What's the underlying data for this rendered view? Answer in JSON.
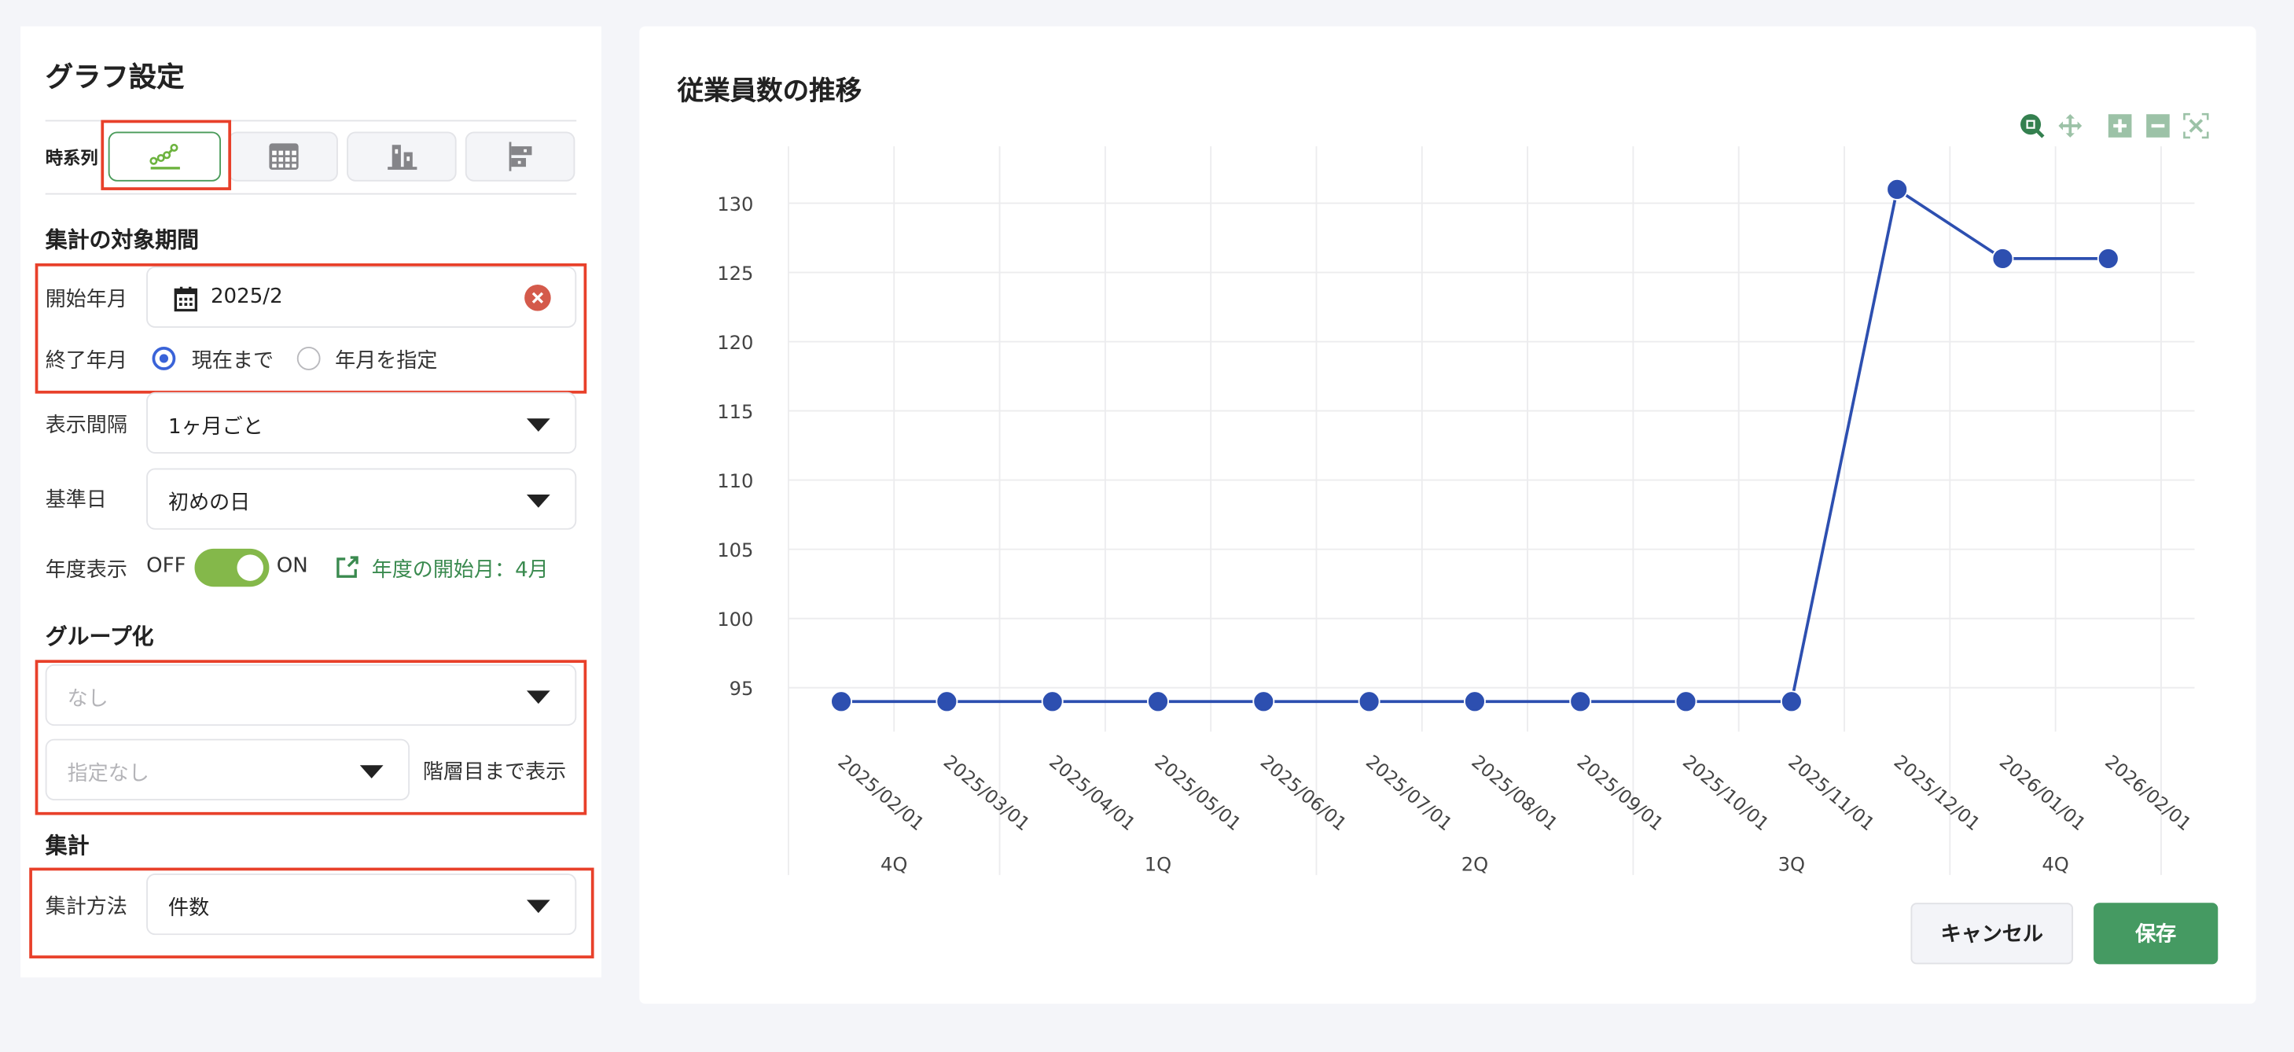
{
  "settings": {
    "title": "グラフ設定",
    "chart_type_label": "時系列",
    "chart_types": [
      {
        "icon": "line-chart-icon",
        "selected": true
      },
      {
        "icon": "table-icon",
        "selected": false
      },
      {
        "icon": "bar-chart-icon",
        "selected": false
      },
      {
        "icon": "horizontal-bar-chart-icon",
        "selected": false
      }
    ],
    "period_heading": "集計の対象期間",
    "start_label": "開始年月",
    "start_value": "2025/2",
    "end_label": "終了年月",
    "end_options": [
      "現在まで",
      "年月を指定"
    ],
    "end_selected": 0,
    "interval_label": "表示間隔",
    "interval_value": "1ヶ月ごと",
    "base_day_label": "基準日",
    "base_day_value": "初めの日",
    "fiscal_label": "年度表示",
    "fiscal_off": "OFF",
    "fiscal_on": "ON",
    "fiscal_enabled": true,
    "fiscal_link": "年度の開始月：4月",
    "group_heading": "グループ化",
    "group_placeholder": "なし",
    "level_placeholder": "指定なし",
    "level_suffix": "階層目まで表示",
    "agg_heading": "集計",
    "agg_method_label": "集計方法",
    "agg_method_value": "件数"
  },
  "chart_panel": {
    "title": "従業員数の推移",
    "toolbar": [
      "zoom-select-icon",
      "pan-icon",
      "zoom-in-icon",
      "zoom-out-icon",
      "reset-zoom-icon"
    ],
    "cancel_label": "キャンセル",
    "save_label": "保存"
  },
  "colors": {
    "accent_green": "#459a62",
    "series": "#2d4fb0",
    "highlight": "#e8402a"
  },
  "chart_data": {
    "type": "line",
    "title": "従業員数の推移",
    "categories": [
      "2025/02/01",
      "2025/03/01",
      "2025/04/01",
      "2025/05/01",
      "2025/06/01",
      "2025/07/01",
      "2025/08/01",
      "2025/09/01",
      "2025/10/01",
      "2025/11/01",
      "2025/12/01",
      "2026/01/01",
      "2026/02/01"
    ],
    "values": [
      94,
      94,
      94,
      94,
      94,
      94,
      94,
      94,
      94,
      94,
      131,
      126,
      126
    ],
    "y_ticks": [
      95,
      100,
      105,
      110,
      115,
      120,
      125,
      130
    ],
    "ylim": [
      90.5,
      132
    ],
    "grid": true,
    "quarters": [
      {
        "label": "4Q",
        "months": 2
      },
      {
        "label": "1Q",
        "months": 3
      },
      {
        "label": "2Q",
        "months": 3
      },
      {
        "label": "3Q",
        "months": 3
      },
      {
        "label": "4Q",
        "months": 2
      }
    ]
  }
}
